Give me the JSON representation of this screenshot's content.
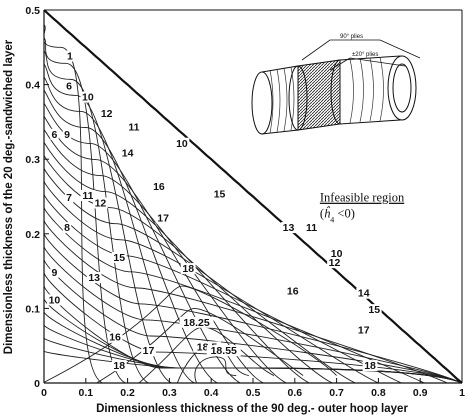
{
  "chart_data": {
    "type": "contour",
    "xlabel": "Dimensionless thickness of the 90 deg.- outer hoop layer",
    "ylabel": "Dimensionless thickness of the 20 deg.-sandwiched layer",
    "xlim": [
      0,
      1
    ],
    "ylim": [
      0,
      0.5
    ],
    "xticks": [
      "0",
      "0.1",
      "0.2",
      "0.3",
      "0.4",
      "0.5",
      "0.6",
      "0.7",
      "0.8",
      "0.9",
      "1"
    ],
    "yticks": [
      "0",
      "0.1",
      "0.2",
      "0.3",
      "0.4",
      "0.5"
    ],
    "grid": false,
    "feasible_region": "x + 2y <= 1",
    "contour_labels": [
      {
        "text": "1",
        "x": 0.062,
        "y": 0.435
      },
      {
        "text": "6",
        "x": 0.06,
        "y": 0.395
      },
      {
        "text": "10",
        "x": 0.105,
        "y": 0.38
      },
      {
        "text": "12",
        "x": 0.15,
        "y": 0.358
      },
      {
        "text": "11",
        "x": 0.215,
        "y": 0.34
      },
      {
        "text": "10",
        "x": 0.33,
        "y": 0.318
      },
      {
        "text": "9",
        "x": 0.055,
        "y": 0.33
      },
      {
        "text": "6",
        "x": 0.025,
        "y": 0.33
      },
      {
        "text": "14",
        "x": 0.2,
        "y": 0.305
      },
      {
        "text": "16",
        "x": 0.275,
        "y": 0.26
      },
      {
        "text": "15",
        "x": 0.42,
        "y": 0.25
      },
      {
        "text": "7",
        "x": 0.06,
        "y": 0.245
      },
      {
        "text": "11",
        "x": 0.105,
        "y": 0.248
      },
      {
        "text": "12",
        "x": 0.135,
        "y": 0.238
      },
      {
        "text": "17",
        "x": 0.285,
        "y": 0.218
      },
      {
        "text": "8",
        "x": 0.055,
        "y": 0.205
      },
      {
        "text": "13",
        "x": 0.585,
        "y": 0.205
      },
      {
        "text": "11",
        "x": 0.64,
        "y": 0.205
      },
      {
        "text": "10",
        "x": 0.7,
        "y": 0.17
      },
      {
        "text": "12",
        "x": 0.695,
        "y": 0.158
      },
      {
        "text": "15",
        "x": 0.18,
        "y": 0.165
      },
      {
        "text": "13",
        "x": 0.12,
        "y": 0.138
      },
      {
        "text": "18",
        "x": 0.345,
        "y": 0.15
      },
      {
        "text": "16",
        "x": 0.595,
        "y": 0.12
      },
      {
        "text": "14",
        "x": 0.765,
        "y": 0.117
      },
      {
        "text": "15",
        "x": 0.79,
        "y": 0.095
      },
      {
        "text": "9",
        "x": 0.025,
        "y": 0.145
      },
      {
        "text": "10",
        "x": 0.025,
        "y": 0.108
      },
      {
        "text": "18.25",
        "x": 0.365,
        "y": 0.078
      },
      {
        "text": "17",
        "x": 0.765,
        "y": 0.068
      },
      {
        "text": "16",
        "x": 0.17,
        "y": 0.058
      },
      {
        "text": "18.5",
        "x": 0.39,
        "y": 0.045
      },
      {
        "text": "17",
        "x": 0.25,
        "y": 0.04
      },
      {
        "text": "18.55",
        "x": 0.43,
        "y": 0.04
      },
      {
        "text": "18",
        "x": 0.18,
        "y": 0.02
      },
      {
        "text": "18",
        "x": 0.78,
        "y": 0.02
      }
    ],
    "annotations": [
      {
        "text": "Infeasible region",
        "x": 0.66,
        "y": 0.243
      },
      {
        "text_parts": [
          "(",
          "ĥ",
          "4",
          " <0)"
        ],
        "x": 0.66,
        "y": 0.222
      }
    ],
    "inset": {
      "labels": [
        "90° plies",
        "±20° plies"
      ]
    }
  }
}
